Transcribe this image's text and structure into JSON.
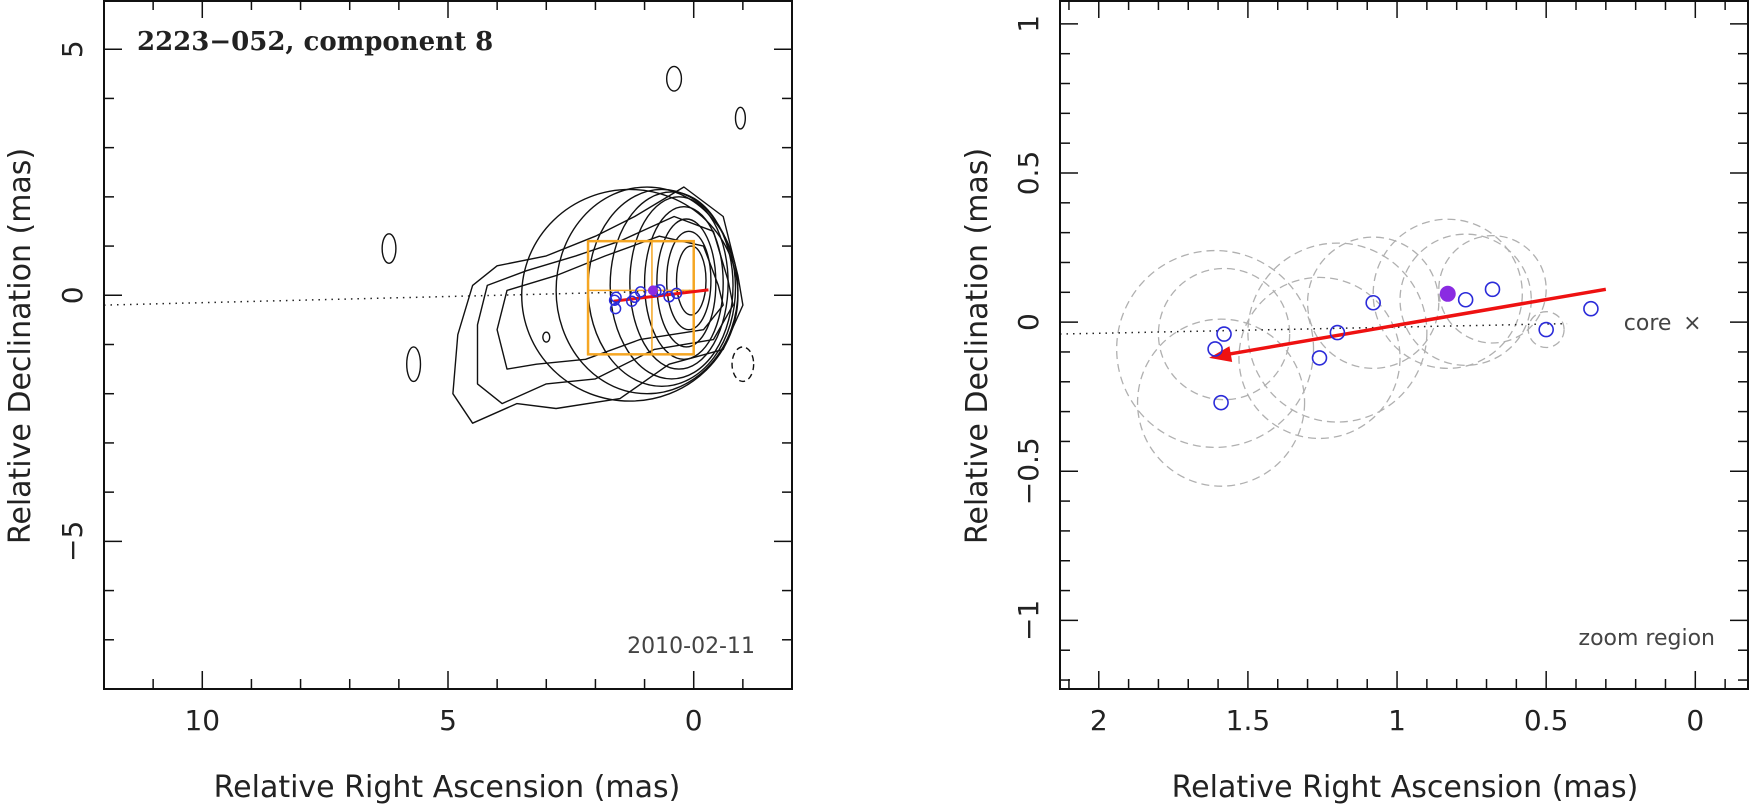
{
  "chart_data": [
    {
      "type": "contour",
      "title": "2223−052, component 8",
      "date_label": "2010-02-11",
      "xlabel": "Relative Right Ascension (mas)",
      "ylabel": "Relative Declination (mas)",
      "xlim": [
        12,
        -2
      ],
      "ylim": [
        -8,
        6
      ],
      "x_ticks": [
        10,
        5,
        0
      ],
      "x_tick_labels": [
        "10",
        "5",
        "0"
      ],
      "y_ticks": [
        5,
        0,
        -5
      ],
      "y_tick_labels": [
        "5",
        "0",
        "−5"
      ],
      "core_axis": [
        [
          13,
          -0.2
        ],
        [
          0,
          0.1
        ]
      ],
      "contour_levels": [
        {
          "cx": 0.05,
          "cy": 0.3,
          "rx": 0.3,
          "ry": 0.7
        },
        {
          "cx": 0.1,
          "cy": 0.3,
          "rx": 0.45,
          "ry": 1.0
        },
        {
          "cx": 0.15,
          "cy": 0.25,
          "rx": 0.6,
          "ry": 1.3
        },
        {
          "cx": 0.2,
          "cy": 0.25,
          "rx": 0.8,
          "ry": 1.55
        },
        {
          "cx": 0.3,
          "cy": 0.25,
          "rx": 1.0,
          "ry": 1.75
        },
        {
          "cx": 0.45,
          "cy": 0.2,
          "rx": 1.25,
          "ry": 1.9
        },
        {
          "cx": 0.65,
          "cy": 0.15,
          "rx": 1.5,
          "ry": 2.0
        },
        {
          "cx": 0.95,
          "cy": 0.1,
          "rx": 1.85,
          "ry": 2.1
        },
        {
          "cx": 1.3,
          "cy": 0.0,
          "rx": 2.2,
          "ry": 2.15
        }
      ],
      "outer_contours": [
        [
          [
            -0.9,
            0.4
          ],
          [
            -0.6,
            1.6
          ],
          [
            0.2,
            2.2
          ],
          [
            1.2,
            1.6
          ],
          [
            2.0,
            1.2
          ],
          [
            3.0,
            0.8
          ],
          [
            4.0,
            0.6
          ],
          [
            4.5,
            0.2
          ],
          [
            4.8,
            -0.8
          ],
          [
            4.9,
            -2.0
          ],
          [
            4.5,
            -2.6
          ],
          [
            3.6,
            -2.2
          ],
          [
            2.8,
            -2.3
          ],
          [
            1.5,
            -2.1
          ],
          [
            0.5,
            -1.4
          ],
          [
            -0.6,
            -1.1
          ],
          [
            -1.0,
            -0.2
          ],
          [
            -0.9,
            0.4
          ]
        ],
        [
          [
            -0.7,
            0.3
          ],
          [
            -0.4,
            1.3
          ],
          [
            0.4,
            1.6
          ],
          [
            1.5,
            1.1
          ],
          [
            2.4,
            0.8
          ],
          [
            3.4,
            0.5
          ],
          [
            4.2,
            0.2
          ],
          [
            4.4,
            -0.6
          ],
          [
            4.4,
            -1.8
          ],
          [
            3.9,
            -2.2
          ],
          [
            3.0,
            -1.8
          ],
          [
            2.0,
            -1.7
          ],
          [
            0.8,
            -1.1
          ],
          [
            -0.4,
            -0.9
          ],
          [
            -0.8,
            -0.2
          ],
          [
            -0.7,
            0.3
          ]
        ],
        [
          [
            -0.5,
            0.2
          ],
          [
            -0.2,
            1.0
          ],
          [
            0.7,
            1.2
          ],
          [
            1.8,
            0.8
          ],
          [
            2.8,
            0.4
          ],
          [
            3.8,
            0.1
          ],
          [
            4.0,
            -0.7
          ],
          [
            3.8,
            -1.5
          ],
          [
            3.2,
            -1.4
          ],
          [
            2.2,
            -1.3
          ],
          [
            1.1,
            -0.9
          ],
          [
            -0.2,
            -0.7
          ],
          [
            -0.6,
            -0.2
          ],
          [
            -0.5,
            0.2
          ]
        ]
      ],
      "isolated_contours": [
        {
          "cx": 0.4,
          "cy": 4.4,
          "rx": 0.15,
          "ry": 0.25
        },
        {
          "cx": -0.95,
          "cy": 3.6,
          "rx": 0.1,
          "ry": 0.22
        },
        {
          "cx": 6.2,
          "cy": 0.95,
          "rx": 0.14,
          "ry": 0.3
        },
        {
          "cx": 5.7,
          "cy": -1.4,
          "rx": 0.14,
          "ry": 0.35
        },
        {
          "cx": -1.0,
          "cy": -1.4,
          "rx": 0.22,
          "ry": 0.35,
          "dashed": true
        },
        {
          "cx": 3.0,
          "cy": -0.85,
          "rx": 0.07,
          "ry": 0.1
        }
      ],
      "zoom_box": {
        "x": [
          0,
          2.15
        ],
        "y": [
          -1.2,
          1.1
        ],
        "inner_x": 0.85,
        "inner_y": 0.1
      },
      "points": [
        {
          "x": 1.61,
          "y": -0.1
        },
        {
          "x": 1.59,
          "y": -0.27
        },
        {
          "x": 1.58,
          "y": -0.04
        },
        {
          "x": 1.26,
          "y": -0.12
        },
        {
          "x": 1.2,
          "y": -0.04
        },
        {
          "x": 1.08,
          "y": 0.07
        },
        {
          "x": 0.77,
          "y": 0.08
        },
        {
          "x": 0.69,
          "y": 0.11
        },
        {
          "x": 0.5,
          "y": -0.03
        },
        {
          "x": 0.35,
          "y": 0.04
        }
      ],
      "current_point": {
        "x": 0.83,
        "y": 0.1
      },
      "motion_vector": {
        "from": [
          -0.3,
          0.11
        ],
        "to": [
          1.63,
          -0.12
        ]
      }
    },
    {
      "type": "scatter",
      "title": "zoom region",
      "xlabel": "Relative Right Ascension (mas)",
      "ylabel": "Relative Declination (mas)",
      "xlim": [
        2.13,
        -0.18
      ],
      "ylim": [
        -1.23,
        1.08
      ],
      "x_ticks": [
        2,
        1.5,
        1,
        0.5,
        0
      ],
      "x_tick_labels": [
        "2",
        "1.5",
        "1",
        "0.5",
        "0"
      ],
      "y_ticks": [
        1,
        0.5,
        0,
        -0.5,
        -1
      ],
      "y_tick_labels": [
        "1",
        "0.5",
        "0",
        "−0.5",
        "−1"
      ],
      "core_label": "core",
      "core_marker": "×",
      "core_axis": [
        [
          2.13,
          -0.04
        ],
        [
          0,
          0.0
        ]
      ],
      "points": [
        {
          "x": 1.61,
          "y": -0.09
        },
        {
          "x": 1.59,
          "y": -0.27
        },
        {
          "x": 1.58,
          "y": -0.04
        },
        {
          "x": 1.26,
          "y": -0.12
        },
        {
          "x": 1.2,
          "y": -0.035
        },
        {
          "x": 1.08,
          "y": 0.065
        },
        {
          "x": 0.77,
          "y": 0.075
        },
        {
          "x": 0.68,
          "y": 0.11
        },
        {
          "x": 0.5,
          "y": -0.025
        },
        {
          "x": 0.35,
          "y": 0.045
        }
      ],
      "current_point": {
        "x": 0.83,
        "y": 0.095
      },
      "gaussian_sizes": [
        {
          "x": 1.61,
          "y": -0.09,
          "r": 0.33
        },
        {
          "x": 1.59,
          "y": -0.27,
          "r": 0.28
        },
        {
          "x": 1.58,
          "y": -0.04,
          "r": 0.22
        },
        {
          "x": 1.26,
          "y": -0.12,
          "r": 0.27
        },
        {
          "x": 1.2,
          "y": -0.035,
          "r": 0.3
        },
        {
          "x": 1.08,
          "y": 0.065,
          "r": 0.22
        },
        {
          "x": 0.83,
          "y": 0.095,
          "r": 0.25
        },
        {
          "x": 0.77,
          "y": 0.075,
          "r": 0.22
        },
        {
          "x": 0.68,
          "y": 0.11,
          "r": 0.18
        },
        {
          "x": 0.5,
          "y": -0.025,
          "r": 0.06
        }
      ],
      "motion_vector": {
        "from": [
          0.3,
          0.11
        ],
        "to": [
          1.63,
          -0.12
        ]
      }
    }
  ],
  "colors": {
    "axis": "#111111",
    "contour": "#111111",
    "zoom_box": "#f5a623",
    "point": "#2b2bd9",
    "current_point": "#8a2be2",
    "vector": "#ee1111",
    "ghost": "#b0b0b0"
  }
}
